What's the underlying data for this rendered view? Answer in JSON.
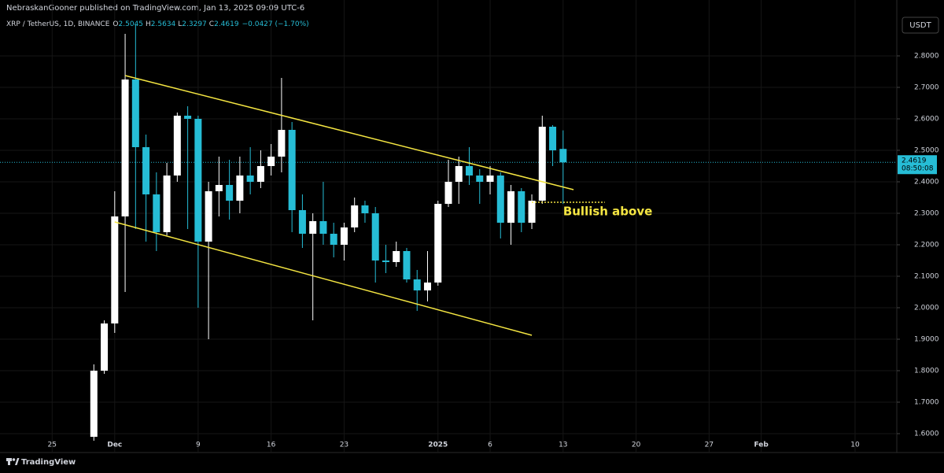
{
  "chart_data": {
    "type": "candlestick",
    "publisher_line": "NebraskanGooner published on TradingView.com, Jan 13, 2025 09:09 UTC-6",
    "symbol": "XRP / TetherUS, 1D, BINANCE",
    "ohlc_labels": [
      "O",
      "H",
      "L",
      "C"
    ],
    "ohlc": [
      2.5045,
      2.5634,
      2.3297,
      2.4619
    ],
    "change_label": "−0.0427 (−1.70%)",
    "currency": "USDT",
    "brand": "TradingView",
    "up_color": "#ffffff",
    "down_color": "#26bdd6",
    "x": [
      "2024-11-29",
      "2024-11-30",
      "2024-12-01",
      "2024-12-02",
      "2024-12-03",
      "2024-12-04",
      "2024-12-05",
      "2024-12-06",
      "2024-12-07",
      "2024-12-08",
      "2024-12-09",
      "2024-12-10",
      "2024-12-11",
      "2024-12-12",
      "2024-12-13",
      "2024-12-14",
      "2024-12-15",
      "2024-12-16",
      "2024-12-17",
      "2024-12-18",
      "2024-12-19",
      "2024-12-20",
      "2024-12-21",
      "2024-12-22",
      "2024-12-23",
      "2024-12-24",
      "2024-12-25",
      "2024-12-26",
      "2024-12-27",
      "2024-12-28",
      "2024-12-29",
      "2024-12-30",
      "2024-12-31",
      "2025-01-01",
      "2025-01-02",
      "2025-01-03",
      "2025-01-04",
      "2025-01-05",
      "2025-01-06",
      "2025-01-07",
      "2025-01-08",
      "2025-01-09",
      "2025-01-10",
      "2025-01-11",
      "2025-01-12",
      "2025-01-13"
    ],
    "open": [
      1.59,
      1.8,
      1.95,
      2.29,
      2.725,
      2.51,
      2.36,
      2.24,
      2.42,
      2.61,
      2.6,
      2.21,
      2.37,
      2.39,
      2.34,
      2.42,
      2.4,
      2.45,
      2.48,
      2.565,
      2.31,
      2.235,
      2.275,
      2.235,
      2.2,
      2.255,
      2.325,
      2.3,
      2.15,
      2.145,
      2.18,
      2.09,
      2.055,
      2.08,
      2.33,
      2.4,
      2.45,
      2.42,
      2.4,
      2.42,
      2.27,
      2.37,
      2.27,
      2.34,
      2.575,
      2.5045
    ],
    "high": [
      1.82,
      1.96,
      2.37,
      2.87,
      2.9,
      2.55,
      2.43,
      2.46,
      2.62,
      2.64,
      2.61,
      2.4,
      2.48,
      2.47,
      2.48,
      2.51,
      2.5,
      2.52,
      2.73,
      2.59,
      2.36,
      2.3,
      2.4,
      2.27,
      2.27,
      2.35,
      2.34,
      2.32,
      2.2,
      2.21,
      2.19,
      2.12,
      2.18,
      2.34,
      2.47,
      2.48,
      2.51,
      2.44,
      2.45,
      2.43,
      2.39,
      2.38,
      2.36,
      2.61,
      2.58,
      2.5634
    ],
    "low": [
      1.57,
      1.79,
      1.92,
      2.05,
      2.25,
      2.21,
      2.18,
      2.23,
      2.4,
      2.25,
      2.0,
      1.9,
      2.29,
      2.28,
      2.3,
      2.36,
      2.38,
      2.42,
      2.43,
      2.24,
      2.19,
      1.96,
      2.2,
      2.16,
      2.15,
      2.24,
      2.27,
      2.08,
      2.11,
      2.13,
      2.08,
      1.99,
      2.02,
      2.07,
      2.32,
      2.33,
      2.39,
      2.33,
      2.36,
      2.22,
      2.2,
      2.24,
      2.25,
      2.33,
      2.45,
      2.3297
    ],
    "close": [
      1.8,
      1.95,
      2.29,
      2.725,
      2.51,
      2.36,
      2.24,
      2.42,
      2.61,
      2.6,
      2.21,
      2.37,
      2.39,
      2.34,
      2.42,
      2.4,
      2.45,
      2.48,
      2.565,
      2.31,
      2.235,
      2.275,
      2.235,
      2.2,
      2.255,
      2.325,
      2.3,
      2.15,
      2.145,
      2.18,
      2.09,
      2.055,
      2.08,
      2.33,
      2.4,
      2.45,
      2.42,
      2.4,
      2.42,
      2.27,
      2.37,
      2.27,
      2.34,
      2.575,
      2.5,
      2.4619
    ],
    "xlim": [
      "2024-11-20",
      "2025-02-14"
    ],
    "xticks": [
      {
        "value": "2024-11-25",
        "label": "25"
      },
      {
        "value": "2024-12-01",
        "label": "Dec"
      },
      {
        "value": "2024-12-09",
        "label": "9"
      },
      {
        "value": "2024-12-16",
        "label": "16"
      },
      {
        "value": "2024-12-23",
        "label": "23"
      },
      {
        "value": "2025-01-01",
        "label": "2025"
      },
      {
        "value": "2025-01-06",
        "label": "6"
      },
      {
        "value": "2025-01-13",
        "label": "13"
      },
      {
        "value": "2025-01-20",
        "label": "20"
      },
      {
        "value": "2025-01-27",
        "label": "27"
      },
      {
        "value": "2025-02-01",
        "label": "Feb"
      },
      {
        "value": "2025-02-10",
        "label": "10"
      }
    ],
    "ylim": [
      1.5775,
      2.9275
    ],
    "yticks": [
      {
        "value": 1.6,
        "label": "1.6000"
      },
      {
        "value": 1.7,
        "label": "1.7000"
      },
      {
        "value": 1.8,
        "label": "1.8000"
      },
      {
        "value": 1.9,
        "label": "1.9000"
      },
      {
        "value": 2.0,
        "label": "2.0000"
      },
      {
        "value": 2.1,
        "label": "2.1000"
      },
      {
        "value": 2.2,
        "label": "2.2000"
      },
      {
        "value": 2.3,
        "label": "2.3000"
      },
      {
        "value": 2.4,
        "label": "2.4000"
      },
      {
        "value": 2.5,
        "label": "2.5000"
      },
      {
        "value": 2.6,
        "label": "2.6000"
      },
      {
        "value": 2.7,
        "label": "2.7000"
      },
      {
        "value": 2.8,
        "label": "2.8000"
      }
    ],
    "grid": true,
    "last_price": 2.4619,
    "countdown": "08:50:08",
    "trendlines": [
      {
        "x": [
          "2024-12-02",
          "2025-01-14"
        ],
        "y": [
          2.7375,
          2.375
        ],
        "color": "#f5e642"
      },
      {
        "x": [
          "2024-12-01",
          "2025-01-10"
        ],
        "y": [
          2.2725,
          1.9125
        ],
        "color": "#f5e642"
      }
    ],
    "level": {
      "x": [
        "2025-01-10",
        "2025-01-17"
      ],
      "y": 2.335,
      "color": "#f5e642"
    },
    "annotation": {
      "text": "Bullish above",
      "x": "2025-01-13",
      "y": 2.305,
      "color": "#f5e642"
    }
  }
}
